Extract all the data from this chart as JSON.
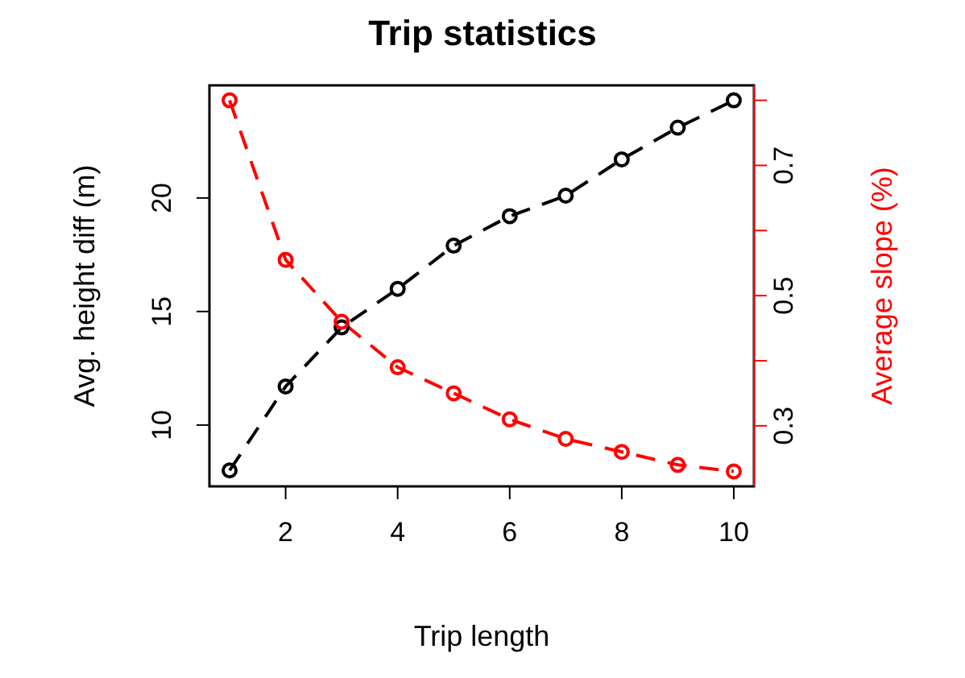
{
  "chart_data": {
    "type": "line",
    "title": "Trip statistics",
    "xlabel": "Trip length",
    "ylabel": "Avg. height diff (m)",
    "y2label": "Average slope (%)",
    "x": [
      1,
      2,
      3,
      4,
      5,
      6,
      7,
      8,
      9,
      10
    ],
    "series": [
      {
        "color": "#000000",
        "values": [
          8.0,
          11.7,
          14.3,
          16.0,
          17.9,
          19.2,
          20.1,
          21.7,
          23.1,
          24.3
        ]
      },
      {
        "color": "#ff0000",
        "axis": "y2",
        "values": [
          0.8,
          0.555,
          0.46,
          0.39,
          0.35,
          0.31,
          0.28,
          0.26,
          0.24,
          0.23
        ]
      }
    ],
    "xlim": [
      0.64,
      10.36
    ],
    "xticks": [
      2,
      4,
      6,
      8,
      10
    ],
    "ylim": [
      7.3,
      24.96
    ],
    "yticks": [
      10,
      15,
      20
    ],
    "y2lim": [
      0.207,
      0.823
    ],
    "y2ticks": [
      0.3,
      {
        "value": 0.4,
        "label": null
      },
      0.5,
      {
        "value": 0.6,
        "label": null
      },
      0.7,
      {
        "value": 0.8,
        "label": null
      }
    ],
    "marker": "circle",
    "line_style": "dashed",
    "grid": false
  }
}
